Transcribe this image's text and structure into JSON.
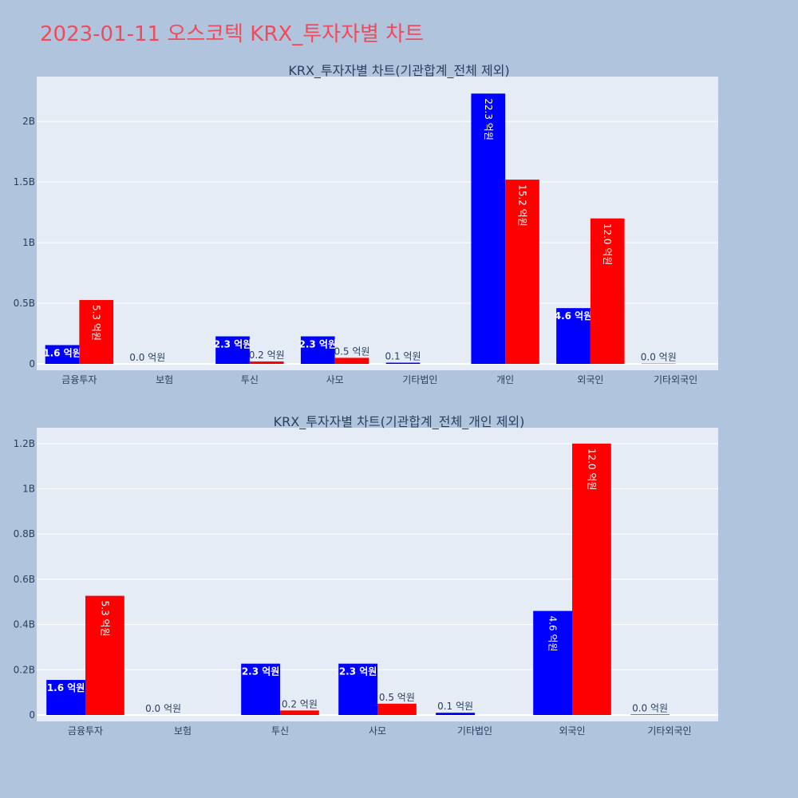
{
  "page": {
    "title": "2023-01-11 오스코텍 KRX_투자자별 차트"
  },
  "colors": {
    "buy": "#0000ff",
    "sell": "#ff0000",
    "plot_bg": "#e5ecf6",
    "page_bg": "#b0c4de",
    "title": "#f04b5b",
    "text": "#2a3f5f"
  },
  "chart_data": [
    {
      "type": "bar",
      "title": "KRX_투자자별 차트(기관합계_전체 제외)",
      "categories": [
        "금융투자",
        "보험",
        "투신",
        "사모",
        "기타법인",
        "개인",
        "외국인",
        "기타외국인"
      ],
      "ylim": [
        0,
        2.37
      ],
      "y_ticks": [
        0,
        0.5,
        1,
        1.5,
        2
      ],
      "y_tick_labels": [
        "0",
        "0.5B",
        "1B",
        "1.5B",
        "2B"
      ],
      "series": [
        {
          "values": [
            0.155,
            0.0,
            0.227,
            0.227,
            0.01,
            2.23,
            0.46,
            0.002
          ],
          "labels": [
            "1.6 억원",
            "0.0 억원",
            "2.3 억원",
            "2.3 억원",
            "0.1 억원",
            "22.3 억원",
            "4.6 억원",
            "0.0 억원"
          ]
        },
        {
          "values": [
            0.527,
            0.0,
            0.02,
            0.05,
            0.0,
            1.52,
            1.2,
            0.0
          ],
          "labels": [
            "5.3 억원",
            "",
            "0.2 억원",
            "0.5 억원",
            "",
            "15.2 억원",
            "12.0 억원",
            ""
          ]
        }
      ],
      "grid": true
    },
    {
      "type": "bar",
      "title": "KRX_투자자별 차트(기관합계_전체_개인 제외)",
      "categories": [
        "금융투자",
        "보험",
        "투신",
        "사모",
        "기타법인",
        "외국인",
        "기타외국인"
      ],
      "ylim": [
        0,
        1.27
      ],
      "y_ticks": [
        0,
        0.2,
        0.4,
        0.6,
        0.8,
        1,
        1.2
      ],
      "y_tick_labels": [
        "0",
        "0.2B",
        "0.4B",
        "0.6B",
        "0.8B",
        "1B",
        "1.2B"
      ],
      "series": [
        {
          "values": [
            0.155,
            0.0,
            0.227,
            0.227,
            0.01,
            0.46,
            0.002
          ],
          "labels": [
            "1.6 억원",
            "0.0 억원",
            "2.3 억원",
            "2.3 억원",
            "0.1 억원",
            "4.6 억원",
            "0.0 억원"
          ]
        },
        {
          "values": [
            0.527,
            0.0,
            0.02,
            0.05,
            0.0,
            1.2,
            0.0
          ],
          "labels": [
            "5.3 억원",
            "",
            "0.2 억원",
            "0.5 억원",
            "",
            "12.0 억원",
            ""
          ]
        }
      ],
      "grid": true
    }
  ]
}
